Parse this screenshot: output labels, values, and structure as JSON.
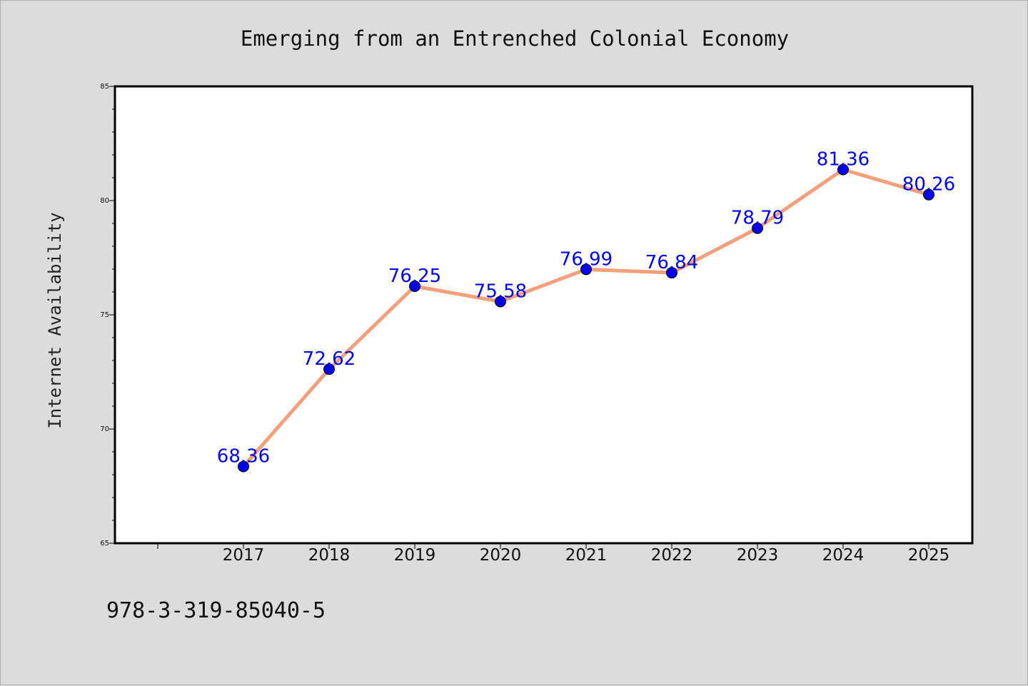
{
  "chart_data": {
    "type": "line",
    "title": "Emerging from an Entrenched Colonial Economy",
    "xlabel": "",
    "ylabel": "Internet Availability",
    "categories": [
      "2017",
      "2018",
      "2019",
      "2020",
      "2021",
      "2022",
      "2023",
      "2024",
      "2025"
    ],
    "series": [
      {
        "values": [
          68.36,
          72.62,
          76.25,
          75.58,
          76.99,
          76.84,
          78.79,
          81.36,
          80.26
        ],
        "data_labels": [
          "68.36",
          "72.62",
          "76.25",
          "75.58",
          "76.99",
          "76.84",
          "78.79",
          "81.36",
          "80.26"
        ]
      }
    ],
    "ylim": [
      65,
      85
    ],
    "yticks": [
      "65",
      "70",
      "75",
      "80",
      "85"
    ],
    "grid": false,
    "legend": "none",
    "colors": {
      "line": "#f4a07c",
      "marker": "#0000ee",
      "marker_edge": "#000000",
      "label": "#0000ee",
      "plot_background": "#ffffff",
      "page_background": "#dcdcdc"
    }
  },
  "footer": {
    "isbn": "978-3-319-85040-5"
  }
}
